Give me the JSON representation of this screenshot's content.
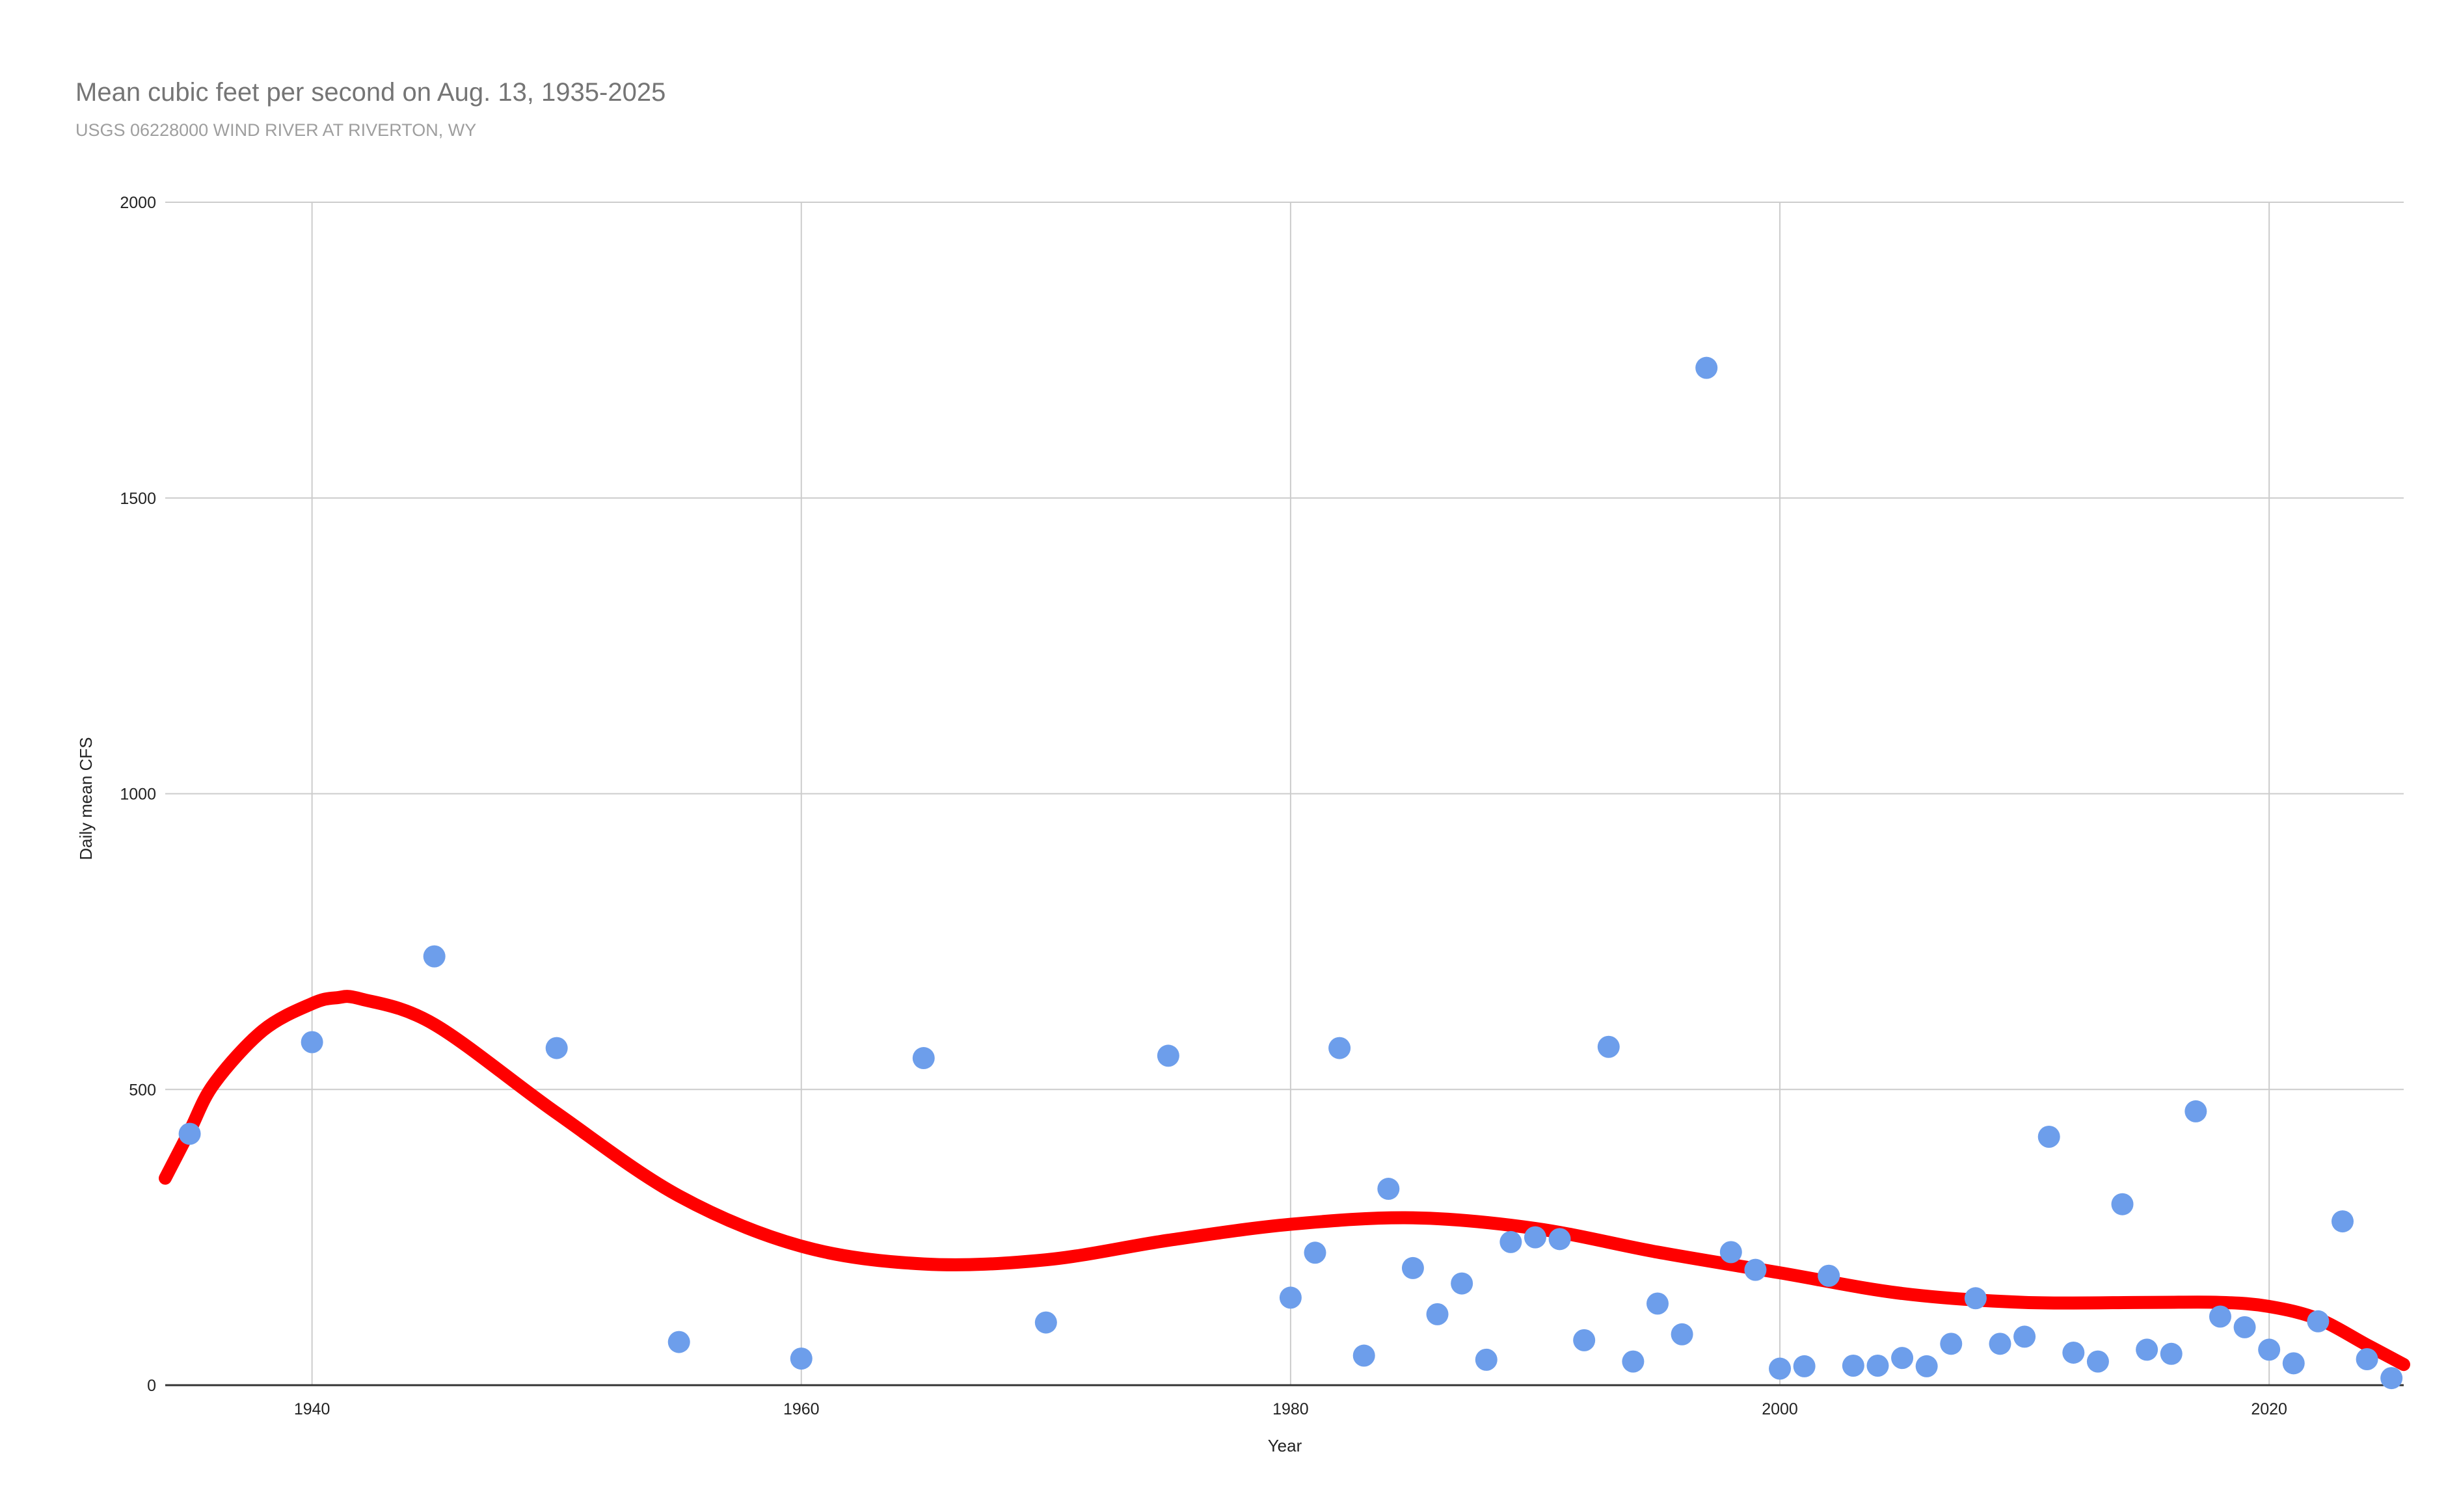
{
  "chart_data": {
    "type": "scatter",
    "title": "Mean cubic feet per second on Aug. 13, 1935-2025",
    "subtitle": "USGS 06228000 WIND RIVER AT RIVERTON, WY",
    "xlabel": "Year",
    "ylabel": "Daily mean CFS",
    "xlim": [
      1934,
      2025.5
    ],
    "ylim": [
      0,
      2000
    ],
    "x_ticks": [
      1940,
      1960,
      1980,
      2000,
      2020
    ],
    "y_ticks": [
      0,
      500,
      1000,
      1500,
      2000
    ],
    "grid": true,
    "legend": "none",
    "series": [
      {
        "marker_color": "#6d9eeb",
        "points": [
          [
            1935,
            425
          ],
          [
            1940,
            580
          ],
          [
            1945,
            725
          ],
          [
            1950,
            570
          ],
          [
            1955,
            73
          ],
          [
            1960,
            45
          ],
          [
            1965,
            553
          ],
          [
            1970,
            106
          ],
          [
            1975,
            557
          ],
          [
            1980,
            148
          ],
          [
            1981,
            224
          ],
          [
            1982,
            570
          ],
          [
            1983,
            50
          ],
          [
            1984,
            332
          ],
          [
            1985,
            198
          ],
          [
            1986,
            120
          ],
          [
            1987,
            172
          ],
          [
            1988,
            43
          ],
          [
            1989,
            242
          ],
          [
            1990,
            250
          ],
          [
            1991,
            247
          ],
          [
            1992,
            76
          ],
          [
            1993,
            572
          ],
          [
            1994,
            40
          ],
          [
            1995,
            138
          ],
          [
            1996,
            86
          ],
          [
            1997,
            1720
          ],
          [
            1998,
            225
          ],
          [
            1999,
            195
          ],
          [
            2000,
            28
          ],
          [
            2001,
            32
          ],
          [
            2002,
            185
          ],
          [
            2003,
            33
          ],
          [
            2004,
            33
          ],
          [
            2005,
            46
          ],
          [
            2006,
            32
          ],
          [
            2007,
            70
          ],
          [
            2008,
            147
          ],
          [
            2009,
            70
          ],
          [
            2010,
            82
          ],
          [
            2011,
            420
          ],
          [
            2012,
            55
          ],
          [
            2013,
            40
          ],
          [
            2014,
            306
          ],
          [
            2015,
            60
          ],
          [
            2016,
            53
          ],
          [
            2017,
            463
          ],
          [
            2018,
            116
          ],
          [
            2019,
            98
          ],
          [
            2020,
            60
          ],
          [
            2021,
            37
          ],
          [
            2022,
            108
          ],
          [
            2023,
            277
          ],
          [
            2024,
            44
          ],
          [
            2025,
            12
          ]
        ]
      }
    ],
    "trendline": {
      "color": "#ff0000",
      "type": "polynomial",
      "points": [
        [
          1934,
          350
        ],
        [
          1935,
          430
        ],
        [
          1936,
          510
        ],
        [
          1938,
          600
        ],
        [
          1940,
          645
        ],
        [
          1941,
          655
        ],
        [
          1942,
          653
        ],
        [
          1945,
          610
        ],
        [
          1950,
          460
        ],
        [
          1955,
          320
        ],
        [
          1960,
          235
        ],
        [
          1965,
          205
        ],
        [
          1970,
          212
        ],
        [
          1975,
          245
        ],
        [
          1980,
          272
        ],
        [
          1985,
          283
        ],
        [
          1990,
          265
        ],
        [
          1995,
          225
        ],
        [
          2000,
          190
        ],
        [
          2005,
          155
        ],
        [
          2010,
          140
        ],
        [
          2015,
          140
        ],
        [
          2018,
          140
        ],
        [
          2020,
          133
        ],
        [
          2022,
          112
        ],
        [
          2024,
          68
        ],
        [
          2025.5,
          35
        ]
      ]
    }
  }
}
